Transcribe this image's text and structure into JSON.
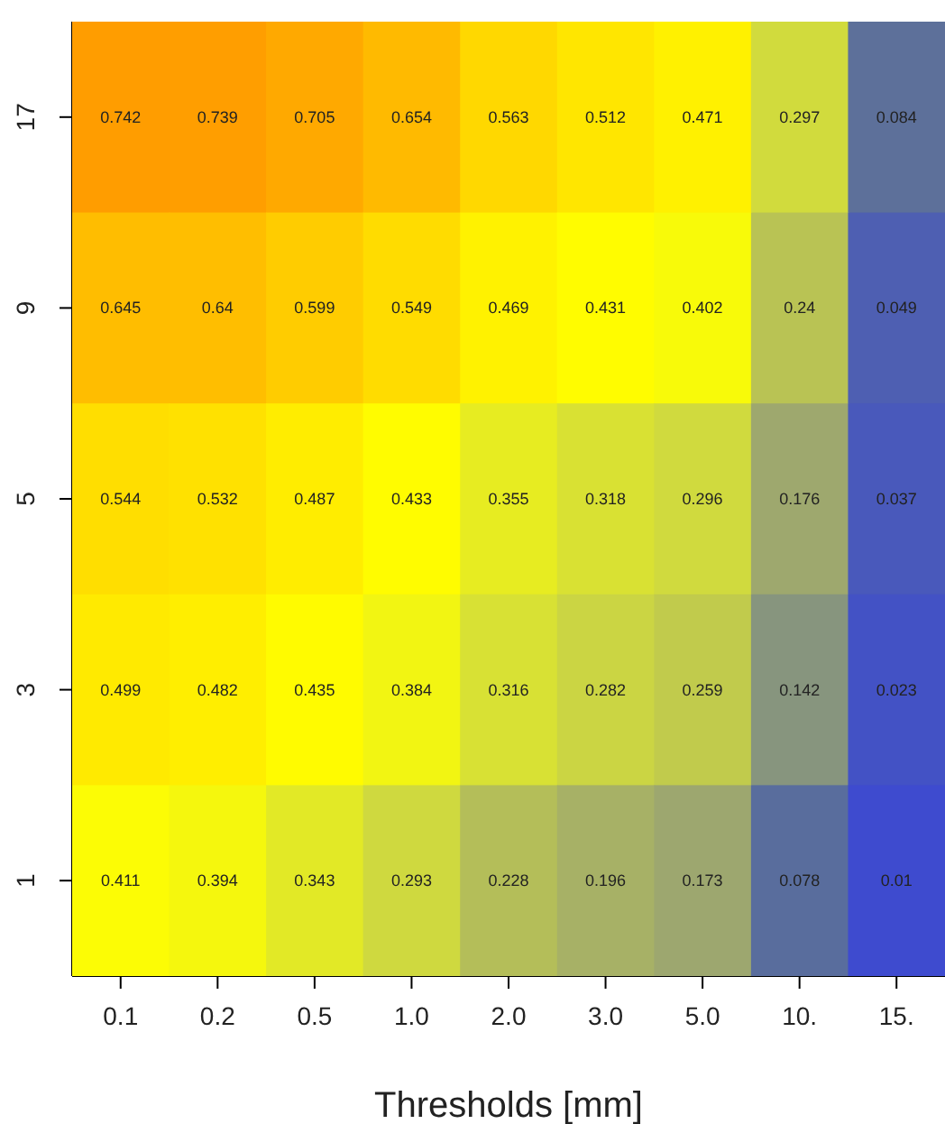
{
  "chart_data": {
    "type": "heatmap",
    "xlabel": "Thresholds [mm]",
    "categories": [
      "0.1",
      "0.2",
      "0.5",
      "1.0",
      "2.0",
      "3.0",
      "5.0",
      "10.",
      "15."
    ],
    "y_categories": [
      "17",
      "9",
      "5",
      "3",
      "1"
    ],
    "cells": [
      [
        0.742,
        0.739,
        0.705,
        0.654,
        0.563,
        0.512,
        0.471,
        0.297,
        0.084
      ],
      [
        0.645,
        0.64,
        0.599,
        0.549,
        0.469,
        0.431,
        0.402,
        0.24,
        0.049
      ],
      [
        0.544,
        0.532,
        0.487,
        0.433,
        0.355,
        0.318,
        0.296,
        0.176,
        0.037
      ],
      [
        0.499,
        0.482,
        0.435,
        0.384,
        0.316,
        0.282,
        0.259,
        0.142,
        0.023
      ],
      [
        0.411,
        0.394,
        0.343,
        0.293,
        0.228,
        0.196,
        0.173,
        0.078,
        0.01
      ]
    ],
    "data_labels": true
  }
}
